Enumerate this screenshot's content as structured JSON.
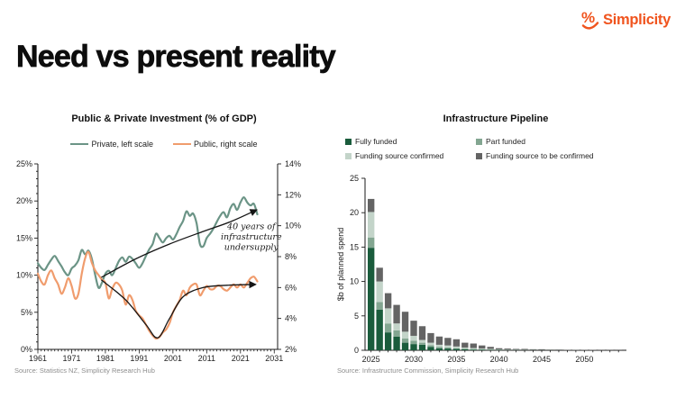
{
  "header": {
    "title": "Need vs present reality"
  },
  "logo": {
    "brand": "Simplicity",
    "mark": "%",
    "color": "#F0541E"
  },
  "chart_data": [
    {
      "type": "line",
      "title": "Public & Private Investment (% of GDP)",
      "source": "Source: Statistics NZ, Simplicity Research Hub",
      "years_start": 1961,
      "x_axis": {
        "min": 1961,
        "max": 2032,
        "tick_labels": [
          "1961",
          "1971",
          "1981",
          "1991",
          "2001",
          "2011",
          "2021",
          "2031"
        ]
      },
      "left_axis": {
        "min": 0,
        "max": 25,
        "tick_values": [
          0,
          5,
          10,
          15,
          20,
          25
        ],
        "tick_labels": [
          "0%",
          "5%",
          "10%",
          "15%",
          "20%",
          "25%"
        ]
      },
      "right_axis": {
        "min": 2,
        "max": 14,
        "tick_values": [
          2,
          4,
          6,
          8,
          10,
          12,
          14
        ],
        "tick_labels": [
          "2%",
          "4%",
          "6%",
          "8%",
          "10%",
          "12%",
          "14%"
        ]
      },
      "series": [
        {
          "name": "Private, left scale",
          "axis": "left",
          "color": "#6B9486",
          "values": [
            11.6,
            11.0,
            10.7,
            11.4,
            12.1,
            12.6,
            11.9,
            11.2,
            10.4,
            10.0,
            10.9,
            11.3,
            12.0,
            13.4,
            12.8,
            13.3,
            12.2,
            10.0,
            8.3,
            9.0,
            10.2,
            10.6,
            10.0,
            10.9,
            11.9,
            12.4,
            11.8,
            12.5,
            12.2,
            11.6,
            11.0,
            11.6,
            12.6,
            13.5,
            14.2,
            15.6,
            15.0,
            14.4,
            15.0,
            15.3,
            14.8,
            15.5,
            16.5,
            17.3,
            18.6,
            18.0,
            18.3,
            17.0,
            14.2,
            13.9,
            15.0,
            15.6,
            16.3,
            17.2,
            18.0,
            18.5,
            17.8,
            19.0,
            19.6,
            18.8,
            19.8,
            20.5,
            19.8,
            19.4,
            19.6,
            18.2
          ]
        },
        {
          "name": "Public, right scale",
          "axis": "right",
          "color": "#F09C6D",
          "values": [
            6.9,
            6.4,
            6.2,
            6.8,
            7.1,
            6.6,
            6.2,
            5.6,
            6.0,
            6.6,
            6.1,
            5.3,
            5.6,
            6.9,
            7.9,
            8.3,
            7.6,
            7.1,
            6.8,
            6.5,
            6.3,
            5.3,
            5.9,
            6.3,
            6.2,
            5.8,
            4.9,
            5.5,
            5.2,
            4.5,
            4.2,
            4.0,
            3.6,
            3.2,
            2.9,
            2.7,
            2.8,
            3.1,
            3.3,
            3.7,
            4.4,
            4.8,
            5.2,
            5.8,
            5.5,
            6.0,
            6.2,
            6.2,
            5.5,
            5.8,
            6.1,
            5.9,
            5.9,
            6.1,
            6.1,
            5.9,
            5.8,
            6.0,
            6.2,
            6.0,
            6.2,
            6.0,
            6.3,
            6.6,
            6.7,
            6.4
          ]
        }
      ],
      "annotation": {
        "lines": [
          "40 years of",
          "infrastructure",
          "undersupply"
        ],
        "x_year": 2024.2,
        "y_left": 16.2,
        "arrows": [
          {
            "axis": "left",
            "points": [
              [
                1979.8,
                9.7
              ],
              [
                1990,
                12.2
              ],
              [
                2000,
                14.2
              ],
              [
                2010,
                15.9
              ],
              [
                2018,
                17.2
              ],
              [
                2025.8,
                18.8
              ]
            ]
          },
          {
            "axis": "right",
            "points": [
              [
                1979.8,
                6.5
              ],
              [
                1987,
                5.2
              ],
              [
                1993,
                3.6
              ],
              [
                1996.5,
                2.75
              ],
              [
                2000,
                4.0
              ],
              [
                2004,
                5.4
              ],
              [
                2010,
                6.0
              ],
              [
                2017,
                6.15
              ],
              [
                2025.5,
                6.2
              ]
            ]
          }
        ]
      }
    },
    {
      "type": "stacked-bar",
      "title": "Infrastructure Pipeline",
      "ylabel": "$b of planned spend",
      "source": "Source: Infrastructure Commission, Simplicity Research Hub",
      "years_start": 2025,
      "ylim": [
        0,
        25
      ],
      "yticks": [
        0,
        5,
        10,
        15,
        20,
        25
      ],
      "x_tick_labels": [
        "2025",
        "2030",
        "2035",
        "2040",
        "2045",
        "2050"
      ],
      "series": [
        {
          "name": "Fully funded",
          "color": "#1A5C3C",
          "values": [
            14.9,
            5.9,
            2.6,
            2.0,
            1.1,
            0.9,
            0.8,
            0.5,
            0.3,
            0.25,
            0.2,
            0.15,
            0.1,
            0.1,
            0.05,
            0.05,
            0.03,
            0.03,
            0.02,
            0.02,
            0.02,
            0.01,
            0.01,
            0.01,
            0.01,
            0,
            0,
            0,
            0,
            0
          ]
        },
        {
          "name": "Part funded",
          "color": "#83A691",
          "values": [
            1.5,
            1.1,
            1.3,
            0.9,
            0.6,
            0.5,
            0.3,
            0.25,
            0.2,
            0.15,
            0.1,
            0.1,
            0.08,
            0.05,
            0.05,
            0.03,
            0.02,
            0.02,
            0.02,
            0.01,
            0.01,
            0.01,
            0.01,
            0,
            0,
            0,
            0,
            0,
            0,
            0
          ]
        },
        {
          "name": "Funding source confirmed",
          "color": "#C3D4C9",
          "values": [
            3.7,
            3.0,
            2.2,
            1.0,
            1.0,
            0.7,
            0.4,
            0.35,
            0.3,
            0.3,
            0.25,
            0.15,
            0.15,
            0.1,
            0.1,
            0.05,
            0.05,
            0.04,
            0.03,
            0.03,
            0.02,
            0.02,
            0.01,
            0.01,
            0.01,
            0.01,
            0,
            0,
            0,
            0
          ]
        },
        {
          "name": "Funding source to be confirmed",
          "color": "#646464",
          "values": [
            1.9,
            2.0,
            2.2,
            2.7,
            2.9,
            2.2,
            2.0,
            1.4,
            1.2,
            1.1,
            1.05,
            0.7,
            0.65,
            0.45,
            0.3,
            0.17,
            0.15,
            0.11,
            0.13,
            0.09,
            0.1,
            0.06,
            0.07,
            0.05,
            0.04,
            0.04,
            0.05,
            0.03,
            0.03,
            0.02
          ]
        }
      ]
    }
  ]
}
